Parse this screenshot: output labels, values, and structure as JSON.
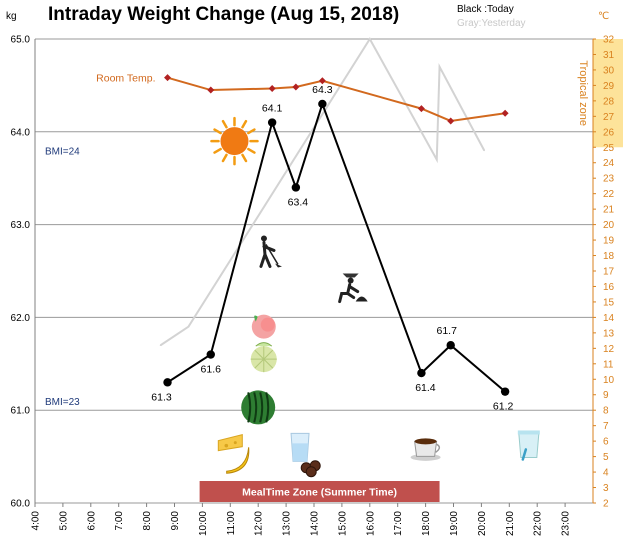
{
  "chart_data": {
    "type": "line",
    "title": "Intraday Weight Change (Aug 15, 2018)",
    "legend": {
      "today": "Black :Today",
      "yesterday": "Gray:Yesterday"
    },
    "y_left": {
      "unit": "kg",
      "range": [
        60.0,
        65.0
      ],
      "ticks": [
        "60.0",
        "61.0",
        "62.0",
        "63.0",
        "64.0",
        "65.0"
      ]
    },
    "y_right": {
      "unit": "℃",
      "range": [
        2,
        32
      ],
      "ticks": [
        "2",
        "3",
        "4",
        "5",
        "6",
        "7",
        "8",
        "9",
        "10",
        "11",
        "12",
        "13",
        "14",
        "15",
        "16",
        "17",
        "18",
        "19",
        "20",
        "21",
        "22",
        "23",
        "24",
        "25",
        "26",
        "27",
        "28",
        "29",
        "30",
        "31",
        "32"
      ],
      "band_label": "Tropical zone",
      "band_range": [
        25,
        32
      ]
    },
    "x_axis": {
      "ticks": [
        "4:00",
        "5:00",
        "6:00",
        "7:00",
        "8:00",
        "9:00",
        "10:00",
        "11:00",
        "12:00",
        "13:00",
        "14:00",
        "15:00",
        "16:00",
        "17:00",
        "18:00",
        "19:00",
        "20:00",
        "21:00",
        "22:00",
        "23:00"
      ]
    },
    "reference_lines": [
      {
        "label": "BMI=24",
        "value": 63.8
      },
      {
        "label": "BMI=23",
        "value": 61.1
      }
    ],
    "meal_zone": {
      "label": "MealTime Zone  (Summer Time)",
      "start_hour": 9.9,
      "end_hour": 18.5
    },
    "series": [
      {
        "name": "Today",
        "color": "#000000",
        "points": [
          {
            "x": 8.75,
            "y": 61.3,
            "label": "61.3"
          },
          {
            "x": 10.3,
            "y": 61.6,
            "label": "61.6"
          },
          {
            "x": 12.5,
            "y": 64.1,
            "label": "64.1"
          },
          {
            "x": 13.35,
            "y": 63.4,
            "label": "63.4"
          },
          {
            "x": 14.3,
            "y": 64.3,
            "label": "64.3"
          },
          {
            "x": 17.85,
            "y": 61.4,
            "label": "61.4"
          },
          {
            "x": 18.9,
            "y": 61.7,
            "label": "61.7"
          },
          {
            "x": 20.85,
            "y": 61.2,
            "label": "61.2"
          }
        ]
      },
      {
        "name": "Yesterday",
        "color": "#d3d3d3",
        "points": [
          {
            "x": 8.5,
            "y": 61.7
          },
          {
            "x": 9.5,
            "y": 61.9
          },
          {
            "x": 16.0,
            "y": 65.0
          },
          {
            "x": 18.4,
            "y": 63.7
          },
          {
            "x": 18.5,
            "y": 64.7
          },
          {
            "x": 20.1,
            "y": 63.8
          }
        ]
      },
      {
        "name": "Room Temp.",
        "color": "#d2691e",
        "axis": "right",
        "points": [
          {
            "x": 8.75,
            "y": 29.5
          },
          {
            "x": 10.3,
            "y": 28.7
          },
          {
            "x": 12.5,
            "y": 28.8
          },
          {
            "x": 13.35,
            "y": 28.9
          },
          {
            "x": 14.3,
            "y": 29.3
          },
          {
            "x": 17.85,
            "y": 27.5
          },
          {
            "x": 18.9,
            "y": 26.7
          },
          {
            "x": 20.85,
            "y": 27.2
          }
        ]
      }
    ],
    "icons": [
      {
        "name": "sun-icon",
        "x": 11.15,
        "y": 63.9
      },
      {
        "name": "sweeping-person-icon",
        "x": 12.35,
        "y": 62.7
      },
      {
        "name": "gardening-person-icon",
        "x": 15.35,
        "y": 62.3
      },
      {
        "name": "peach-icon",
        "x": 12.2,
        "y": 61.9
      },
      {
        "name": "melon-icon",
        "x": 12.2,
        "y": 61.55
      },
      {
        "name": "watermelon-icon",
        "x": 12.0,
        "y": 61.03
      },
      {
        "name": "cheese-icon",
        "x": 11.0,
        "y": 60.65
      },
      {
        "name": "banana-icon",
        "x": 11.3,
        "y": 60.45
      },
      {
        "name": "water-glass-icon",
        "x": 13.5,
        "y": 60.6
      },
      {
        "name": "chocolate-icon",
        "x": 13.9,
        "y": 60.38
      },
      {
        "name": "coffee-cup-icon",
        "x": 18.0,
        "y": 60.6
      },
      {
        "name": "yogurt-cup-icon",
        "x": 21.7,
        "y": 60.62
      }
    ]
  }
}
